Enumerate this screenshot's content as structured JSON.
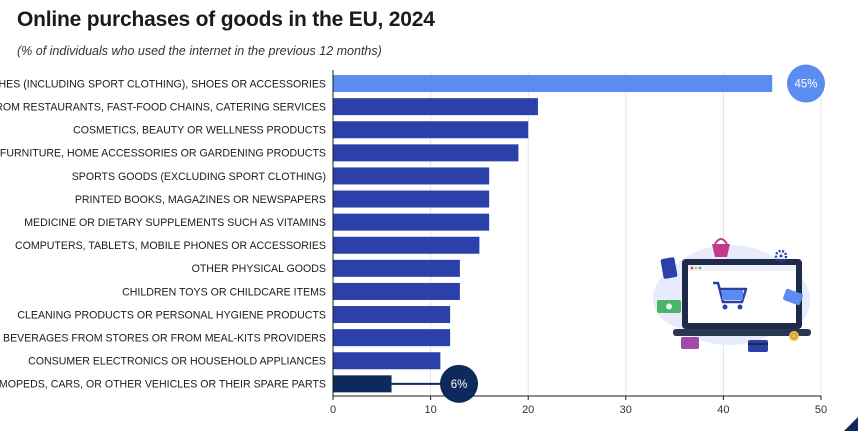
{
  "colors": {
    "bar": "#2b40a8",
    "highlight_max": "#5b8cf0",
    "highlight_min": "#0e2a5c",
    "grid": "#e2e4ea",
    "axis": "#1b1b1b"
  },
  "chart_data": {
    "type": "bar",
    "orientation": "horizontal",
    "title": "Online purchases of goods in the EU, 2024",
    "subtitle": "(% of individuals who used the internet in the previous 12 months)",
    "xlabel": "",
    "ylabel": "",
    "xlim": [
      0,
      50
    ],
    "xticks": [
      0,
      10,
      20,
      30,
      40,
      50
    ],
    "grid": true,
    "categories": [
      "CLOTHES (INCLUDING SPORT CLOTHING), SHOES OR ACCESSORIES",
      "DELIVERIES FROM RESTAURANTS, FAST-FOOD CHAINS, CATERING SERVICES",
      "COSMETICS, BEAUTY OR WELLNESS PRODUCTS",
      "FURNITURE, HOME ACCESSORIES OR GARDENING PRODUCTS",
      "SPORTS GOODS (EXCLUDING SPORT CLOTHING)",
      "PRINTED BOOKS, MAGAZINES OR NEWSPAPERS",
      "MEDICINE OR DIETARY SUPPLEMENTS SUCH AS VITAMINS",
      "COMPUTERS, TABLETS, MOBILE PHONES OR ACCESSORIES",
      "OTHER PHYSICAL GOODS",
      "CHILDREN TOYS OR CHILDCARE ITEMS",
      "CLEANING PRODUCTS OR PERSONAL HYGIENE PRODUCTS",
      "FOOD OR BEVERAGES FROM STORES OR FROM MEAL-KITS PROVIDERS",
      "CONSUMER ELECTRONICS OR HOUSEHOLD APPLIANCES",
      "BICYCLES, MOPEDS, CARS, OR OTHER VEHICLES OR THEIR SPARE PARTS"
    ],
    "values": [
      45,
      21,
      20,
      19,
      16,
      16,
      16,
      15,
      13,
      13,
      12,
      12,
      11,
      6
    ],
    "data_labels": [
      {
        "index": 0,
        "text": "45%"
      },
      {
        "index": 13,
        "text": "6%"
      }
    ]
  }
}
